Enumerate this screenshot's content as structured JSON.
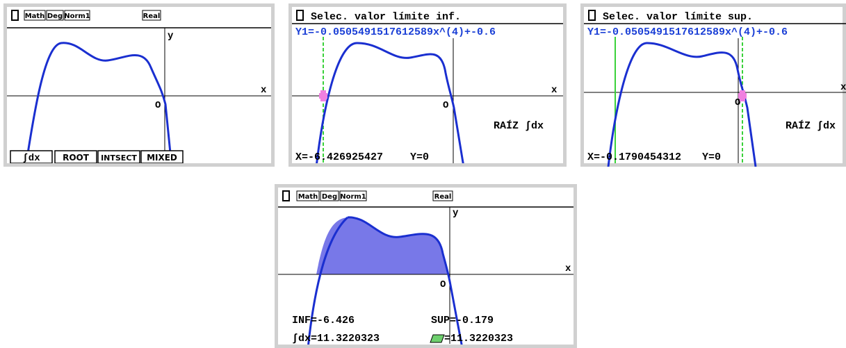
{
  "screens": [
    {
      "status_bar": [
        "Math",
        "Deg",
        "Norm1",
        "Real"
      ],
      "axis": {
        "y": "y",
        "x": "x",
        "origin": "O"
      },
      "menu": [
        "∫dx",
        "ROOT",
        "INTSECT",
        "MIXED"
      ]
    },
    {
      "prompt": "Selec. valor límite inf.",
      "function": "Y1=-0.0505491517612589x^(4)+-0.6",
      "axis": {
        "x": "x",
        "origin": "O"
      },
      "label": "RAÍZ ∫dx",
      "x_value": "X=-6.426925427",
      "y_value": "Y=0"
    },
    {
      "prompt": "Selec. valor límite sup.",
      "function": "Y1=-0.0505491517612589x^(4)+-0.6",
      "axis": {
        "x": "x",
        "origin": "O"
      },
      "label": "RAÍZ ∫dx",
      "x_value": "X=-0.1790454312",
      "y_value": "Y=0"
    },
    {
      "status_bar": [
        "Math",
        "Deg",
        "Norm1",
        "Real"
      ],
      "axis": {
        "y": "y",
        "x": "x",
        "origin": "O"
      },
      "inf": "INF=-6.426",
      "sup": "SUP=-0.179",
      "integral": "∫dx=11.3220323",
      "area": "=11.3220323"
    }
  ]
}
